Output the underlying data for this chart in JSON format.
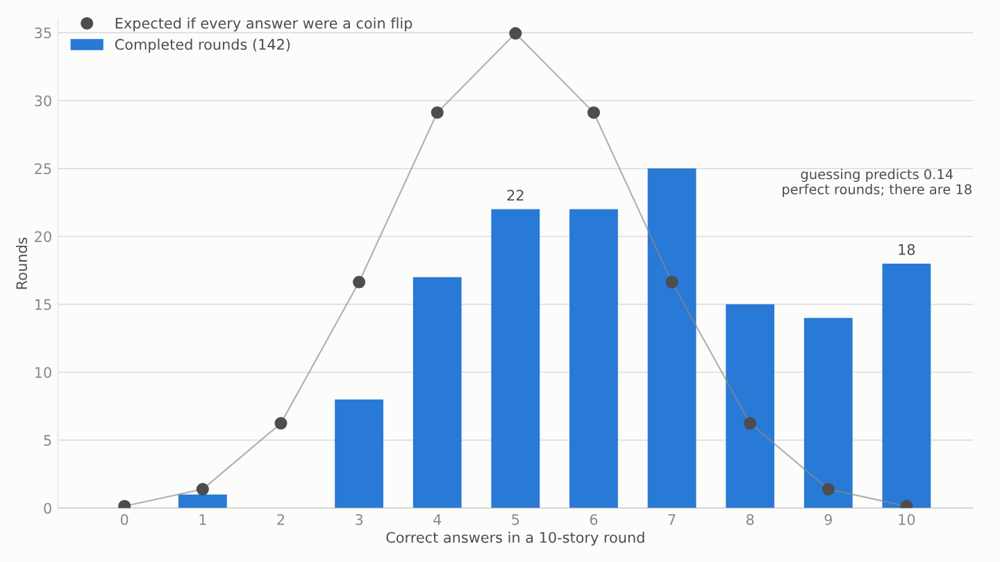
{
  "chart_data": {
    "type": "bar",
    "xlabel": "Correct answers in a 10-story round",
    "ylabel": "Rounds",
    "categories": [
      "0",
      "1",
      "2",
      "3",
      "4",
      "5",
      "6",
      "7",
      "8",
      "9",
      "10"
    ],
    "series": [
      {
        "name": "Completed rounds (142)",
        "color": "#2979d6",
        "values": [
          0,
          1,
          0,
          8,
          17,
          22,
          22,
          25,
          15,
          14,
          18
        ],
        "value_labels": [
          null,
          null,
          null,
          null,
          null,
          "22",
          null,
          null,
          null,
          null,
          "18"
        ]
      },
      {
        "name": "Expected if every answer were a coin flip",
        "type": "line",
        "color": "#4d4d4d",
        "marker": "circle",
        "values": [
          0.14,
          1.39,
          6.24,
          16.64,
          29.12,
          34.95,
          29.12,
          16.64,
          6.24,
          1.39,
          0.14
        ]
      }
    ],
    "ylim": [
      0,
      36
    ],
    "yticks": [
      0,
      5,
      10,
      15,
      20,
      25,
      30,
      35
    ],
    "grid": "y",
    "legend": "top left",
    "annotations": [
      "guessing predicts 0.14\nperfect rounds; there are 18"
    ]
  }
}
